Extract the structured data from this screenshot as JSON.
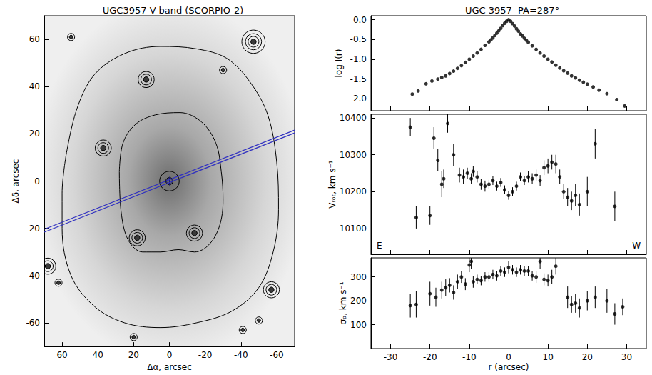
{
  "chart_data": [
    {
      "type": "contour",
      "title": "UGC3957 V-band (SCORPIO-2)",
      "xlabel": "Δα, arcsec",
      "ylabel": "Δδ, arcsec",
      "xlim": [
        70,
        -70
      ],
      "xticks": [
        60,
        40,
        20,
        0,
        -20,
        -40,
        -60
      ],
      "ylim": [
        -70,
        70
      ],
      "yticks": [
        -60,
        -40,
        -20,
        0,
        20,
        40,
        60
      ],
      "grid": false,
      "color": "#000000",
      "contours": [
        [
          [
            28,
            4
          ],
          [
            26,
            16
          ],
          [
            19,
            24
          ],
          [
            8,
            28
          ],
          [
            -6,
            29
          ],
          [
            -18,
            25
          ],
          [
            -26,
            16
          ],
          [
            -29,
            4
          ],
          [
            -30,
            -8
          ],
          [
            -28,
            -19
          ],
          [
            -22,
            -27
          ],
          [
            -14,
            -30
          ],
          [
            -5,
            -29
          ],
          [
            5,
            -30
          ],
          [
            15,
            -30
          ],
          [
            23,
            -25
          ],
          [
            27,
            -13
          ],
          [
            28,
            4
          ]
        ],
        [
          [
            58,
            10
          ],
          [
            52,
            30
          ],
          [
            42,
            45
          ],
          [
            25,
            54
          ],
          [
            5,
            57
          ],
          [
            -15,
            56
          ],
          [
            -32,
            52
          ],
          [
            -45,
            42
          ],
          [
            -55,
            28
          ],
          [
            -60,
            8
          ],
          [
            -61,
            -12
          ],
          [
            -58,
            -30
          ],
          [
            -50,
            -45
          ],
          [
            -35,
            -55
          ],
          [
            -15,
            -60
          ],
          [
            5,
            -62
          ],
          [
            25,
            -60
          ],
          [
            42,
            -53
          ],
          [
            55,
            -40
          ],
          [
            60,
            -20
          ],
          [
            60,
            -5
          ],
          [
            58,
            10
          ]
        ]
      ],
      "sources": [
        {
          "x": -47,
          "y": 59,
          "rings": [
            1.5,
            3,
            4.5,
            6.5
          ]
        },
        {
          "x": 13,
          "y": 43,
          "rings": [
            1.5,
            3,
            4.5
          ]
        },
        {
          "x": -30,
          "y": 47,
          "rings": [
            1,
            2
          ]
        },
        {
          "x": 37,
          "y": 14,
          "rings": [
            1.5,
            3,
            4.5
          ]
        },
        {
          "x": 18,
          "y": -24,
          "rings": [
            1.5,
            3,
            4.5
          ]
        },
        {
          "x": -14,
          "y": -22,
          "rings": [
            1.5,
            3,
            4.5
          ]
        },
        {
          "x": 55,
          "y": 61,
          "rings": [
            1,
            2
          ]
        },
        {
          "x": -57,
          "y": -46,
          "rings": [
            1.5,
            3,
            4.5
          ]
        },
        {
          "x": -50,
          "y": -59,
          "rings": [
            1,
            2
          ]
        },
        {
          "x": -41,
          "y": -63,
          "rings": [
            1,
            2
          ]
        },
        {
          "x": 68,
          "y": -36,
          "rings": [
            1.5,
            3,
            4.5
          ]
        },
        {
          "x": 62,
          "y": -43,
          "rings": [
            1,
            2
          ]
        },
        {
          "x": 20,
          "y": -66,
          "rings": [
            1,
            2
          ]
        }
      ],
      "nucleus_rings": [
        2,
        5.5
      ],
      "center": [
        0,
        0
      ],
      "slit_color": "#3030c0",
      "slit_edges": [
        {
          "x": [
            70,
            -70
          ],
          "y": [
            -20.4,
            21.6
          ]
        },
        {
          "x": [
            70,
            -70
          ],
          "y": [
            -21.6,
            20.4
          ]
        }
      ]
    },
    {
      "type": "scatter",
      "title": "UGC 3957  PA=287°",
      "ylabel": "log I(r)",
      "xlim": [
        -35,
        35
      ],
      "xticks": [
        -30,
        -20,
        -10,
        0,
        10,
        20,
        30
      ],
      "ylim": [
        -2.3,
        0.1
      ],
      "yticks": [
        {
          "value": -2.0,
          "label": "-2.0"
        },
        -1.5,
        {
          "value": -1.0,
          "label": "-1.0"
        },
        -0.5,
        {
          "value": 0.0,
          "label": "0.0"
        }
      ],
      "tick_labels": "y",
      "grid": false,
      "color": "#000000",
      "vline": 0,
      "x": [
        -24.5,
        -23,
        -21,
        -19.5,
        -18,
        -17,
        -16,
        -15,
        -14,
        -13,
        -12,
        -11,
        -10,
        -9,
        -8,
        -7,
        -6,
        -5,
        -4.5,
        -4,
        -3.5,
        -3,
        -2.5,
        -2,
        -1.5,
        -1,
        -0.5,
        0,
        0.5,
        1,
        1.5,
        2,
        2.5,
        3,
        3.5,
        4,
        4.5,
        5,
        6,
        7,
        8,
        9,
        10,
        11,
        12,
        13,
        14,
        15,
        16,
        17,
        18,
        19,
        20,
        21.5,
        23,
        25,
        27.5,
        29.5
      ],
      "values": [
        -1.88,
        -1.8,
        -1.62,
        -1.55,
        -1.5,
        -1.46,
        -1.42,
        -1.36,
        -1.3,
        -1.23,
        -1.16,
        -1.08,
        -1.0,
        -0.92,
        -0.84,
        -0.75,
        -0.65,
        -0.56,
        -0.51,
        -0.46,
        -0.4,
        -0.34,
        -0.28,
        -0.22,
        -0.15,
        -0.09,
        -0.04,
        0.0,
        -0.04,
        -0.1,
        -0.16,
        -0.23,
        -0.29,
        -0.36,
        -0.41,
        -0.47,
        -0.52,
        -0.57,
        -0.66,
        -0.75,
        -0.84,
        -0.92,
        -1.0,
        -1.07,
        -1.15,
        -1.22,
        -1.29,
        -1.35,
        -1.42,
        -1.47,
        -1.53,
        -1.58,
        -1.63,
        -1.7,
        -1.78,
        -1.87,
        -2.02,
        -2.18
      ]
    },
    {
      "type": "scatter",
      "ylabel": "Vᵣₒₜ, km s⁻¹",
      "xlim": [
        -35,
        35
      ],
      "xticks": [
        -30,
        -20,
        -10,
        0,
        10,
        20,
        30
      ],
      "ylim": [
        10030,
        10410
      ],
      "yticks": [
        10100,
        10200,
        10300,
        10400
      ],
      "tick_labels": "y",
      "grid": false,
      "color": "#000000",
      "vline": 0,
      "hline": 10215,
      "corner_labels": [
        "E",
        "W"
      ],
      "x": [
        -25,
        -23.5,
        -20,
        -19,
        -18,
        -17,
        -16.5,
        -15.5,
        -14,
        -12.5,
        -11.5,
        -10.5,
        -9.5,
        -9,
        -8,
        -7,
        -6,
        -5,
        -4,
        -3,
        -2,
        -1,
        0,
        1,
        2,
        3,
        4,
        5,
        6,
        7,
        8,
        9,
        10,
        11,
        12,
        13,
        14,
        15,
        16,
        17,
        18,
        20,
        22,
        27
      ],
      "values": [
        10375,
        10130,
        10135,
        10345,
        10285,
        10220,
        10235,
        10385,
        10300,
        10245,
        10240,
        10250,
        10235,
        10255,
        10240,
        10220,
        10215,
        10220,
        10230,
        10215,
        10225,
        10205,
        10190,
        10200,
        10215,
        10240,
        10230,
        10240,
        10235,
        10245,
        10230,
        10265,
        10270,
        10280,
        10275,
        10240,
        10200,
        10185,
        10175,
        10190,
        10165,
        10200,
        10330,
        10160
      ],
      "errors": [
        25,
        30,
        25,
        30,
        30,
        35,
        25,
        25,
        30,
        20,
        20,
        15,
        15,
        15,
        15,
        15,
        15,
        12,
        12,
        12,
        12,
        12,
        12,
        12,
        12,
        12,
        12,
        15,
        15,
        15,
        15,
        20,
        20,
        20,
        25,
        20,
        20,
        25,
        25,
        30,
        30,
        40,
        40,
        40
      ]
    },
    {
      "type": "scatter",
      "xlabel": "r (arcsec)",
      "ylabel": "σₚ, km s⁻¹",
      "xlim": [
        -35,
        35
      ],
      "xticks": [
        -30,
        -20,
        -10,
        0,
        10,
        20,
        30
      ],
      "ylim": [
        0,
        380
      ],
      "yticks": [
        100,
        200,
        300
      ],
      "grid": false,
      "color": "#000000",
      "vline": 0,
      "x": [
        -25,
        -23.5,
        -20,
        -18.5,
        -17,
        -16,
        -15,
        -14,
        -13,
        -12,
        -11,
        -10,
        -9.5,
        -9,
        -8,
        -7,
        -6,
        -5,
        -4,
        -3,
        -2,
        -1,
        0,
        1,
        2,
        3,
        4,
        5,
        6,
        7,
        8,
        9,
        10,
        11,
        12,
        15,
        16,
        17,
        18,
        20,
        22,
        25,
        27,
        29
      ],
      "values": [
        180,
        185,
        230,
        215,
        245,
        255,
        265,
        235,
        280,
        300,
        270,
        350,
        365,
        280,
        290,
        285,
        300,
        300,
        310,
        305,
        325,
        320,
        340,
        330,
        320,
        330,
        325,
        325,
        305,
        300,
        365,
        290,
        285,
        300,
        345,
        215,
        185,
        190,
        170,
        200,
        215,
        200,
        145,
        175
      ],
      "errors": [
        50,
        55,
        50,
        40,
        35,
        35,
        30,
        30,
        30,
        25,
        25,
        30,
        30,
        25,
        20,
        20,
        20,
        20,
        20,
        20,
        20,
        20,
        25,
        20,
        20,
        20,
        20,
        20,
        20,
        25,
        30,
        25,
        25,
        30,
        35,
        45,
        35,
        40,
        40,
        40,
        45,
        50,
        45,
        35
      ]
    }
  ]
}
